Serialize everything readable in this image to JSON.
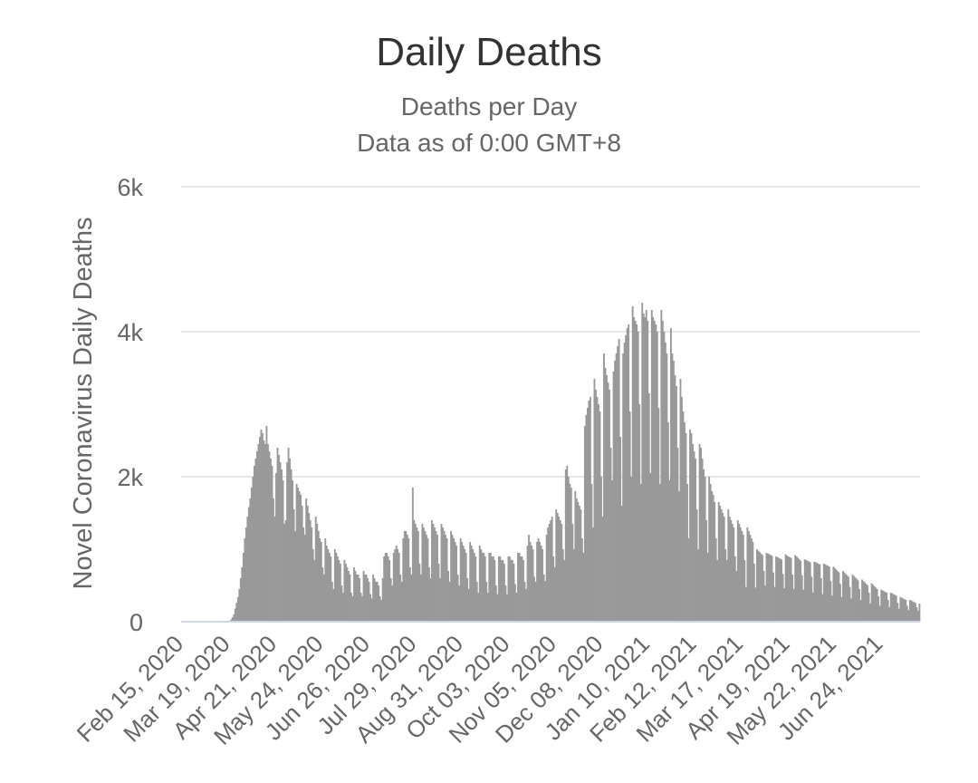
{
  "chart_data": {
    "type": "bar",
    "title": "Daily Deaths",
    "subtitle": [
      "Deaths per Day",
      "Data as of 0:00 GMT+8"
    ],
    "xlabel": "",
    "ylabel": "Novel Coronavirus Daily Deaths",
    "x_start": "Feb 15, 2020",
    "x_end": "Jul 10, 2021",
    "ylim": [
      0,
      6000
    ],
    "yticks": [
      0,
      2000,
      4000,
      6000
    ],
    "ytick_labels": [
      "0",
      "2k",
      "4k",
      "6k"
    ],
    "xtick_labels": [
      "Feb 15, 2020",
      "Mar 19, 2020",
      "Apr 21, 2020",
      "May 24, 2020",
      "Jun 26, 2020",
      "Jul 29, 2020",
      "Aug 31, 2020",
      "Oct 03, 2020",
      "Nov 05, 2020",
      "Dec 08, 2020",
      "Jan 10, 2021",
      "Feb 12, 2021",
      "Mar 17, 2021",
      "Apr 19, 2021",
      "May 22, 2021",
      "Jun 24, 2021"
    ],
    "grid": true,
    "legend": "none",
    "bar_color": "#999999",
    "values": [
      0,
      0,
      0,
      0,
      0,
      0,
      0,
      0,
      0,
      0,
      0,
      0,
      0,
      0,
      0,
      0,
      0,
      0,
      0,
      0,
      0,
      0,
      0,
      0,
      0,
      0,
      0,
      0,
      0,
      0,
      0,
      0,
      0,
      0,
      0,
      0,
      30,
      60,
      100,
      180,
      260,
      340,
      450,
      600,
      750,
      950,
      1150,
      1300,
      1450,
      1580,
      1700,
      1850,
      2000,
      2150,
      2250,
      2350,
      2450,
      2550,
      2650,
      2600,
      2500,
      2450,
      2700,
      2450,
      2350,
      2250,
      2150,
      1700,
      1450,
      2050,
      2400,
      2300,
      2200,
      2100,
      1950,
      1350,
      1400,
      2200,
      2400,
      2250,
      2100,
      1950,
      1550,
      1250,
      1900,
      1850,
      1800,
      1750,
      1600,
      1300,
      1200,
      1700,
      1600,
      1500,
      1400,
      1300,
      1000,
      850,
      1450,
      1350,
      1250,
      1150,
      1100,
      750,
      650,
      1150,
      1050,
      1000,
      950,
      900,
      550,
      450,
      1000,
      950,
      900,
      850,
      800,
      500,
      400,
      850,
      800,
      750,
      700,
      650,
      400,
      350,
      750,
      700,
      650,
      650,
      600,
      400,
      350,
      700,
      650,
      650,
      600,
      550,
      380,
      320,
      650,
      600,
      550,
      550,
      500,
      350,
      300,
      600,
      900,
      950,
      950,
      900,
      850,
      600,
      500,
      950,
      1000,
      1050,
      1000,
      950,
      650,
      550,
      1150,
      1250,
      1250,
      1200,
      1150,
      750,
      650,
      1850,
      1400,
      1350,
      1300,
      1250,
      800,
      650,
      1350,
      1300,
      1250,
      1200,
      1150,
      750,
      600,
      1400,
      1350,
      1300,
      1250,
      1200,
      800,
      600,
      1350,
      1300,
      1250,
      1200,
      1150,
      700,
      550,
      1250,
      1200,
      1150,
      1100,
      1050,
      650,
      500,
      1150,
      1100,
      1050,
      1000,
      950,
      600,
      450,
      1100,
      1050,
      1000,
      950,
      900,
      550,
      400,
      1050,
      1000,
      950,
      950,
      900,
      550,
      400,
      950,
      950,
      900,
      900,
      850,
      500,
      380,
      900,
      900,
      850,
      850,
      800,
      500,
      380,
      900,
      900,
      850,
      850,
      800,
      520,
      400,
      950,
      950,
      900,
      900,
      850,
      550,
      450,
      1050,
      1200,
      1100,
      1050,
      1000,
      620,
      550,
      1100,
      1150,
      1100,
      1050,
      1000,
      650,
      560,
      1200,
      1300,
      1350,
      1400,
      1450,
      900,
      750,
      1550,
      1500,
      1450,
      1400,
      1350,
      1000,
      850,
      2100,
      2150,
      2000,
      1900,
      1850,
      1350,
      1000,
      1800,
      1700,
      1650,
      1600,
      1550,
      1150,
      950,
      2700,
      2850,
      2950,
      3050,
      3100,
      1900,
      1300,
      3350,
      3200,
      3100,
      3000,
      2900,
      2000,
      1450,
      3700,
      3500,
      3400,
      3300,
      3200,
      2400,
      1950,
      3450,
      3600,
      3700,
      3800,
      3900,
      2550,
      1600,
      3700,
      3850,
      3950,
      4050,
      4100,
      2900,
      2000,
      4350,
      4200,
      4150,
      4100,
      4000,
      3000,
      1900,
      4400,
      4250,
      4200,
      4300,
      4150,
      3150,
      2050,
      4300,
      4200,
      4150,
      4100,
      4000,
      2950,
      1900,
      4300,
      4150,
      4000,
      3850,
      3700,
      2750,
      1950,
      4050,
      3700,
      3600,
      3400,
      3250,
      2400,
      1800,
      3350,
      3100,
      2900,
      2750,
      2600,
      1900,
      1150,
      2650,
      2600,
      2450,
      2350,
      2250,
      1550,
      1000,
      2450,
      2400,
      2250,
      2100,
      2000,
      1400,
      950,
      2000,
      1900,
      1800,
      1750,
      1650,
      1150,
      850,
      1650,
      1600,
      1550,
      1500,
      1450,
      1000,
      850,
      1550,
      1450,
      1400,
      1350,
      1300,
      900,
      700,
      1400,
      1350,
      1300,
      1250,
      1200,
      850,
      480,
      1300,
      1250,
      1200,
      1150,
      1100,
      800,
      470,
      1000,
      980,
      960,
      940,
      920,
      700,
      500,
      950,
      940,
      930,
      920,
      910,
      680,
      480,
      900,
      890,
      880,
      870,
      860,
      660,
      460,
      930,
      910,
      900,
      890,
      880,
      650,
      450,
      920,
      900,
      880,
      860,
      840,
      640,
      440,
      860,
      850,
      840,
      830,
      820,
      620,
      400,
      830,
      820,
      810,
      800,
      790,
      600,
      380,
      800,
      790,
      780,
      770,
      760,
      560,
      360,
      760,
      740,
      720,
      700,
      680,
      520,
      340,
      700,
      680,
      660,
      640,
      620,
      480,
      320,
      650,
      630,
      610,
      590,
      570,
      450,
      300,
      580,
      560,
      540,
      520,
      500,
      400,
      250,
      530,
      510,
      490,
      470,
      450,
      350,
      220,
      440,
      430,
      420,
      410,
      400,
      300,
      200,
      400,
      390,
      380,
      370,
      360,
      260,
      180,
      340,
      330,
      320,
      310,
      300,
      220,
      160,
      300,
      290,
      280,
      270,
      260,
      200,
      150,
      250
    ]
  }
}
